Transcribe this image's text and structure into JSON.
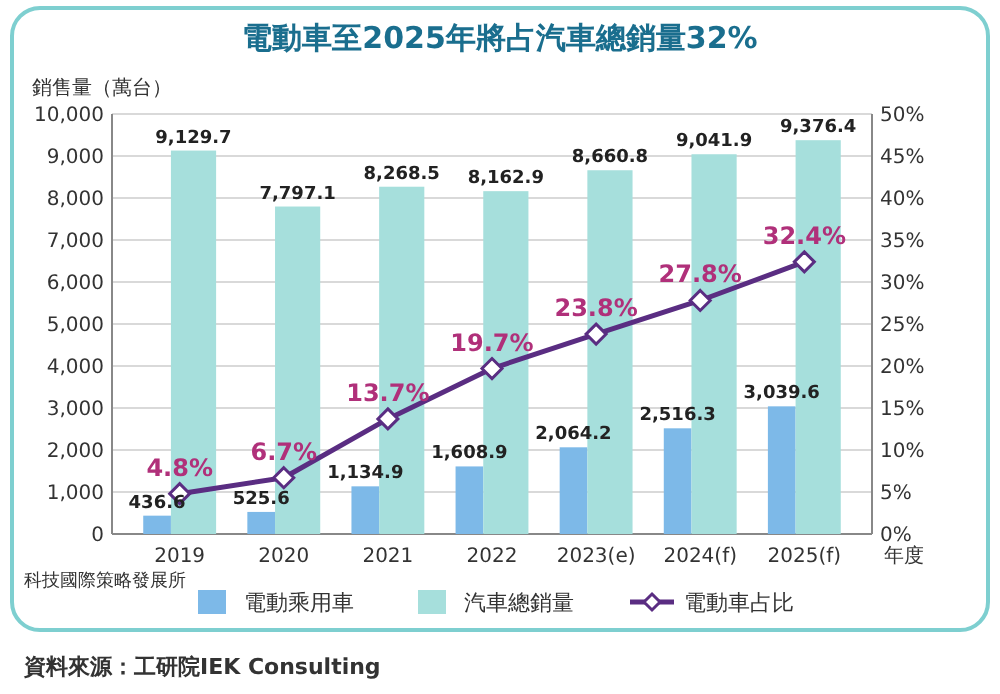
{
  "chart_data": {
    "type": "bar",
    "title": "電動車至2025年將占汽車總銷量32%",
    "ylabel": "銷售量（萬台）",
    "xlabel": "年度",
    "categories": [
      "2019",
      "2020",
      "2021",
      "2022",
      "2023(e)",
      "2024(f)",
      "2025(f)"
    ],
    "series": [
      {
        "name": "電動乘用車",
        "color": "#7db9e8",
        "values": [
          436.6,
          525.6,
          1134.9,
          1608.9,
          2064.2,
          2516.3,
          3039.6
        ],
        "value_labels": [
          "436.6",
          "525.6",
          "1,134.9",
          "1,608.9",
          "2,064.2",
          "2,516.3",
          "3,039.6"
        ]
      },
      {
        "name": "汽車總銷量",
        "color": "#a6dfdc",
        "values": [
          9129.7,
          7797.1,
          8268.5,
          8162.9,
          8660.8,
          9041.9,
          9376.4
        ],
        "value_labels": [
          "9,129.7",
          "7,797.1",
          "8,268.5",
          "8,162.9",
          "8,660.8",
          "9,041.9",
          "9,376.4"
        ]
      },
      {
        "name": "電動車占比",
        "type": "line",
        "axis": "y2",
        "color": "#5a2d82",
        "marker": "diamond",
        "values": [
          4.8,
          6.7,
          13.7,
          19.7,
          23.8,
          27.8,
          32.4
        ],
        "value_labels": [
          "4.8%",
          "6.7%",
          "13.7%",
          "19.7%",
          "23.8%",
          "27.8%",
          "32.4%"
        ]
      }
    ],
    "ylim": [
      0,
      10000
    ],
    "yticks": [
      0,
      {
        "value": 1000,
        "label": "1,000"
      },
      {
        "value": 2000,
        "label": "2,000"
      },
      {
        "value": 3000,
        "label": "3,000"
      },
      {
        "value": 4000,
        "label": "4,000"
      },
      {
        "value": 5000,
        "label": "5,000"
      },
      {
        "value": 6000,
        "label": "6,000"
      },
      {
        "value": 7000,
        "label": "7,000"
      },
      {
        "value": 8000,
        "label": "8,000"
      },
      {
        "value": 9000,
        "label": "9,000"
      },
      {
        "value": 10000,
        "label": "10,000"
      }
    ],
    "y2lim": [
      0,
      50
    ],
    "y2ticks": [
      {
        "value": 0,
        "label": "0%"
      },
      {
        "value": 5,
        "label": "5%"
      },
      {
        "value": 10,
        "label": "10%"
      },
      {
        "value": 15,
        "label": "15%"
      },
      {
        "value": 20,
        "label": "20%"
      },
      {
        "value": 25,
        "label": "25%"
      },
      {
        "value": 30,
        "label": "30%"
      },
      {
        "value": 35,
        "label": "35%"
      },
      {
        "value": 40,
        "label": "40%"
      },
      {
        "value": 45,
        "label": "45%"
      },
      {
        "value": 50,
        "label": "50%"
      }
    ],
    "grid": "y",
    "legend": "bottom",
    "annotations": [
      "科技國際策略發展所",
      "資料來源：工研院IEK Consulting"
    ]
  }
}
